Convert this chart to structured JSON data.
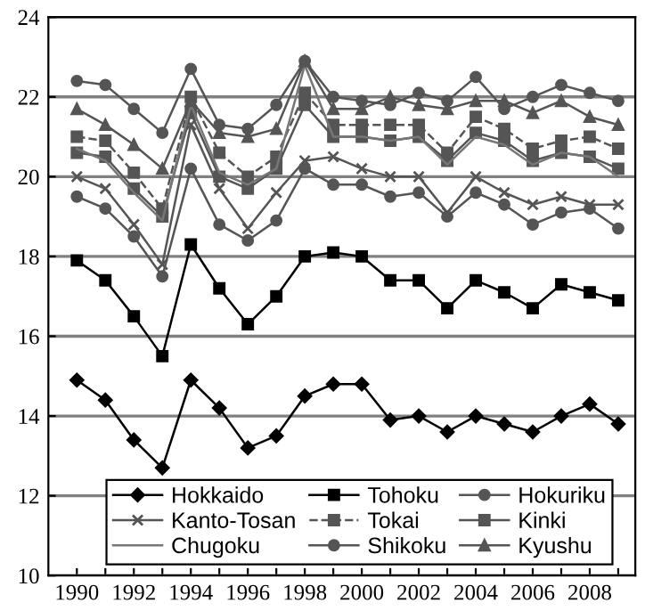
{
  "chart_data": {
    "type": "line",
    "x": [
      1990,
      1991,
      1992,
      1993,
      1994,
      1995,
      1996,
      1997,
      1998,
      1999,
      2000,
      2001,
      2002,
      2003,
      2004,
      2005,
      2006,
      2007,
      2008,
      2009
    ],
    "series": [
      {
        "name": "Hokkaido",
        "color": "#000000",
        "marker": "diamond",
        "line_style": "solid",
        "values": [
          14.9,
          14.4,
          13.4,
          12.7,
          14.9,
          14.2,
          13.2,
          13.5,
          14.5,
          14.8,
          14.8,
          13.9,
          14.0,
          13.6,
          14.0,
          13.8,
          13.6,
          14.0,
          14.3,
          13.8
        ]
      },
      {
        "name": "Tohoku",
        "color": "#000000",
        "marker": "square",
        "line_style": "solid",
        "values": [
          17.9,
          17.4,
          16.5,
          15.5,
          18.3,
          17.2,
          16.3,
          17.0,
          18.0,
          18.1,
          18.0,
          17.4,
          17.4,
          16.7,
          17.4,
          17.1,
          16.7,
          17.3,
          17.1,
          16.9
        ]
      },
      {
        "name": "Hokuriku",
        "color": "#555555",
        "marker": "circle",
        "line_style": "solid",
        "values": [
          19.5,
          19.2,
          18.5,
          17.5,
          20.2,
          18.8,
          18.4,
          18.9,
          20.2,
          19.8,
          19.8,
          19.5,
          19.6,
          19.0,
          19.6,
          19.3,
          18.8,
          19.1,
          19.2,
          18.7
        ]
      },
      {
        "name": "Kanto-Tosan",
        "color": "#555555",
        "marker": "cross",
        "line_style": "solid",
        "values": [
          20.0,
          19.7,
          18.8,
          17.8,
          21.3,
          19.7,
          18.7,
          19.6,
          20.4,
          20.5,
          20.2,
          20.0,
          20.0,
          19.1,
          20.0,
          19.6,
          19.3,
          19.5,
          19.3,
          19.3
        ]
      },
      {
        "name": "Tokai",
        "color": "#555555",
        "marker": "square",
        "line_style": "dashed",
        "values": [
          21.0,
          20.9,
          20.1,
          19.2,
          22.0,
          20.6,
          20.0,
          20.5,
          22.1,
          21.3,
          21.3,
          21.3,
          21.3,
          20.6,
          21.5,
          21.2,
          20.7,
          20.9,
          21.0,
          20.7
        ]
      },
      {
        "name": "Kinki",
        "color": "#555555",
        "marker": "square",
        "line_style": "solid",
        "values": [
          20.6,
          20.5,
          19.7,
          19.0,
          21.6,
          20.0,
          19.7,
          20.2,
          21.8,
          21.0,
          21.0,
          20.9,
          21.0,
          20.4,
          21.1,
          20.9,
          20.4,
          20.6,
          20.5,
          20.2
        ]
      },
      {
        "name": "Chugoku",
        "color": "#777777",
        "marker": "none",
        "line_style": "solid",
        "values": [
          20.7,
          20.4,
          19.6,
          18.9,
          21.8,
          20.1,
          19.8,
          20.2,
          22.8,
          21.0,
          21.0,
          20.9,
          21.0,
          20.3,
          21.0,
          20.8,
          20.3,
          20.6,
          20.5,
          20.0
        ]
      },
      {
        "name": "Shikoku",
        "color": "#555555",
        "marker": "circle",
        "line_style": "solid",
        "values": [
          22.4,
          22.3,
          21.7,
          21.1,
          22.7,
          21.3,
          21.2,
          21.8,
          22.9,
          22.0,
          21.9,
          21.8,
          22.1,
          21.9,
          22.5,
          21.7,
          22.0,
          22.3,
          22.1,
          21.9
        ]
      },
      {
        "name": "Kyushu",
        "color": "#555555",
        "marker": "triangle",
        "line_style": "solid",
        "values": [
          21.7,
          21.3,
          20.8,
          20.2,
          21.9,
          21.1,
          21.0,
          21.2,
          22.9,
          21.7,
          21.7,
          22.0,
          21.8,
          21.7,
          21.9,
          21.9,
          21.6,
          21.9,
          21.5,
          21.3
        ]
      }
    ],
    "xlim": [
      1989,
      2009.6
    ],
    "xticks": [
      1990,
      {
        "value": 1991,
        "label": null
      },
      1992,
      {
        "value": 1993,
        "label": null
      },
      1994,
      {
        "value": 1995,
        "label": null
      },
      1996,
      {
        "value": 1997,
        "label": null
      },
      1998,
      {
        "value": 1999,
        "label": null
      },
      2000,
      {
        "value": 2001,
        "label": null
      },
      2002,
      {
        "value": 2003,
        "label": null
      },
      2004,
      {
        "value": 2005,
        "label": null
      },
      2006,
      {
        "value": 2007,
        "label": null
      },
      2008,
      {
        "value": 2009,
        "label": null
      }
    ],
    "ylim": [
      10,
      24
    ],
    "yticks": [
      10,
      12,
      14,
      16,
      18,
      20,
      22,
      24
    ],
    "grid": "y",
    "legend": "bottom"
  }
}
